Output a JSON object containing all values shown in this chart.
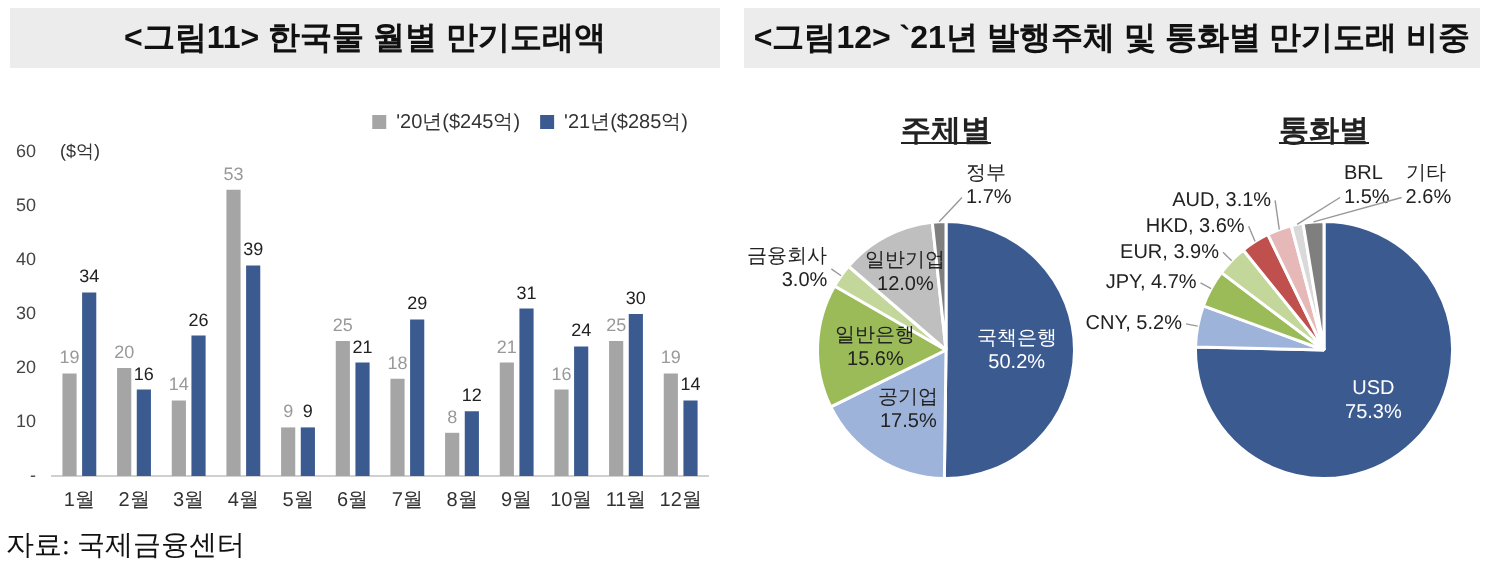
{
  "chart_data": [
    {
      "type": "bar",
      "title": "<그림11> 한국물 월별 만기도래액",
      "ylabel": "($억)",
      "categories": [
        "1월",
        "2월",
        "3월",
        "4월",
        "5월",
        "6월",
        "7월",
        "8월",
        "9월",
        "10월",
        "11월",
        "12월"
      ],
      "series": [
        {
          "name": "'20년($245억)",
          "color": "#a5a5a5",
          "values": [
            19,
            20,
            14,
            53,
            9,
            25,
            18,
            8,
            21,
            16,
            25,
            19
          ]
        },
        {
          "name": "'21년($285억)",
          "color": "#3b5a8f",
          "values": [
            34,
            16,
            26,
            39,
            9,
            21,
            29,
            12,
            31,
            24,
            30,
            14
          ]
        }
      ],
      "ylim": [
        0,
        60
      ],
      "yticks": [
        {
          "value": 0,
          "label": "-"
        },
        10,
        20,
        30,
        40,
        50,
        60
      ],
      "legend": "top right",
      "data_labels": true,
      "annotations": [
        "자료: 국제금융센터"
      ]
    },
    {
      "type": "pie",
      "title": "<그림12> `21년 발행주체 및 통화별 만기도래 비중",
      "subtitle": "주체별",
      "categories": [
        "국책은행",
        "공기업",
        "일반은행",
        "금융회사",
        "일반기업",
        "정부"
      ],
      "values": [
        50.2,
        17.5,
        15.6,
        3.0,
        12.0,
        1.7
      ],
      "colors": [
        "#3b5a8f",
        "#9db3da",
        "#9bbb59",
        "#c4d79b",
        "#bfbfbf",
        "#7f7f7f"
      ],
      "value_labels": [
        "50.2%",
        "17.5%",
        "15.6%",
        "3.0%",
        "12.0%",
        "1.7%"
      ]
    },
    {
      "type": "pie",
      "title": "통화별",
      "categories": [
        "USD",
        "CNY",
        "JPY",
        "EUR",
        "HKD",
        "AUD",
        "BRL",
        "기타"
      ],
      "values": [
        75.3,
        5.2,
        4.7,
        3.9,
        3.6,
        3.1,
        1.5,
        2.6
      ],
      "colors": [
        "#3b5a8f",
        "#9db3da",
        "#9bbb59",
        "#c4d79b",
        "#c0504d",
        "#e6b9b8",
        "#d9d9d9",
        "#7f7f7f"
      ],
      "value_labels": [
        "75.3%",
        "5.2%",
        "4.7%",
        "3.9%",
        "3.6%",
        "3.1%",
        "1.5%",
        "2.6%"
      ]
    }
  ]
}
